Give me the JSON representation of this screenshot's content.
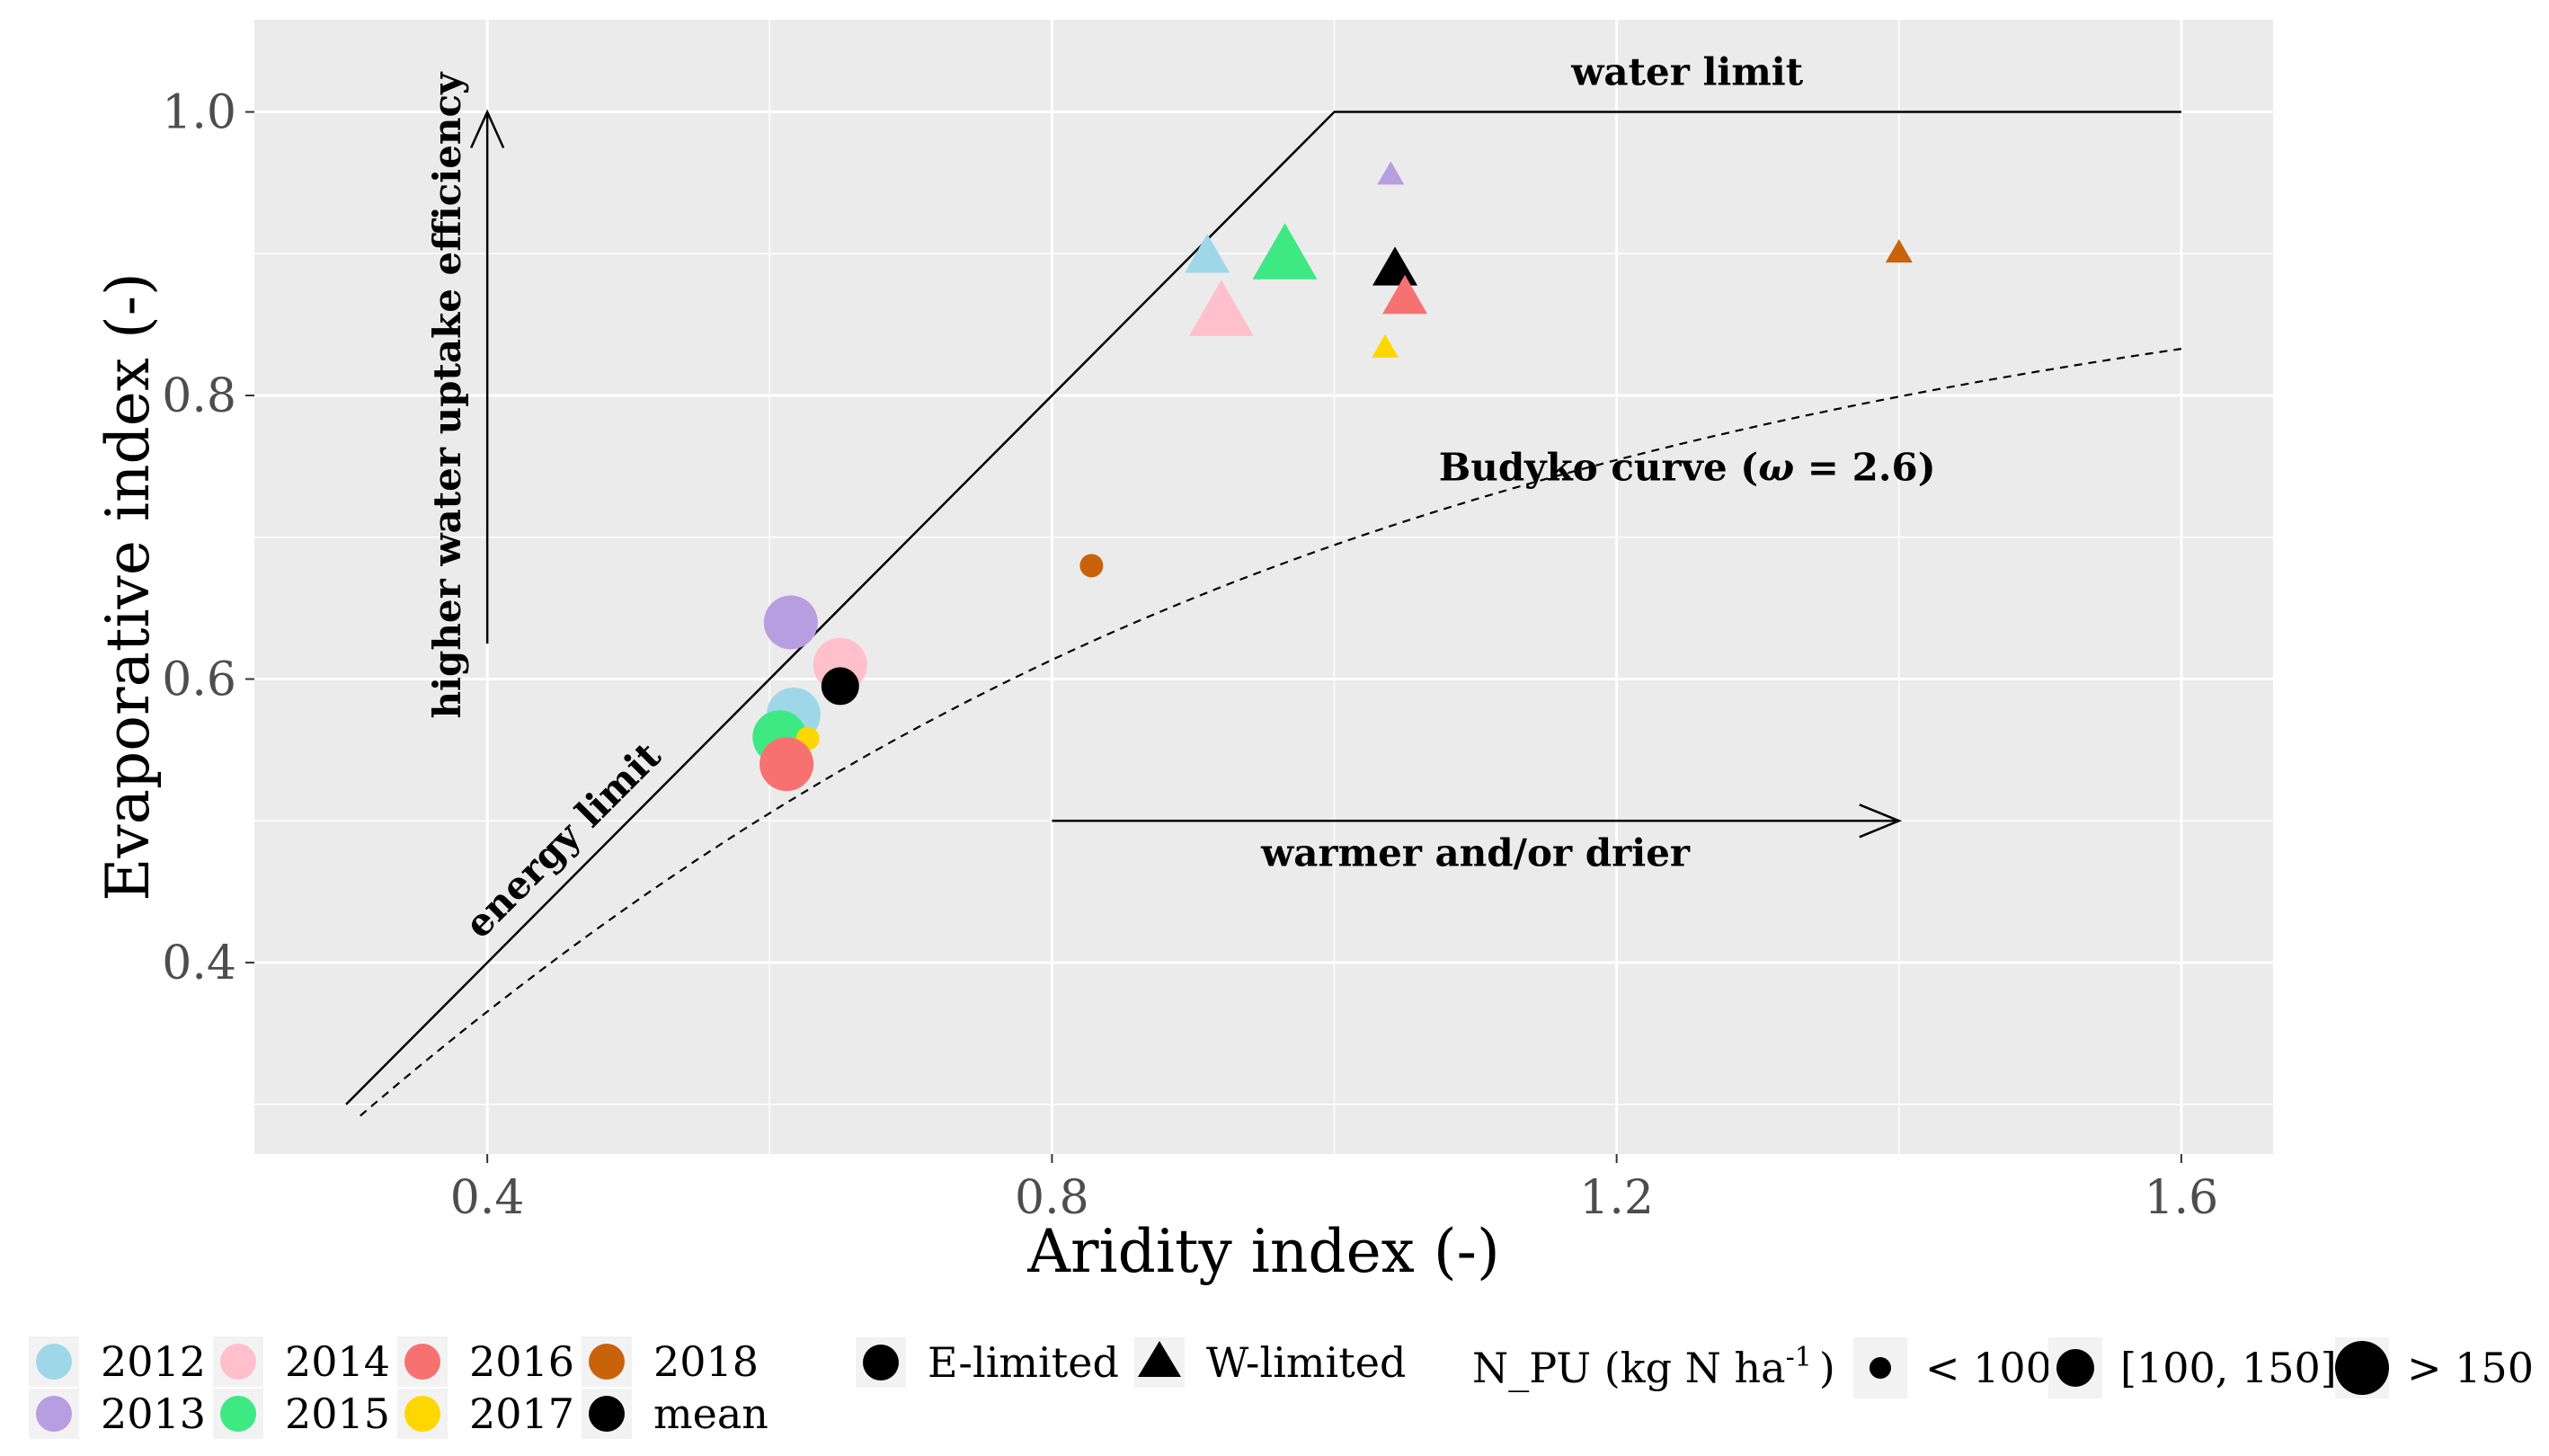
{
  "chart_data": {
    "type": "scatter",
    "xlabel": "Aridity index (-)",
    "ylabel": "Evaporative index (-)",
    "xlim": [
      0.235,
      1.665
    ],
    "ylim": [
      0.265,
      1.065
    ],
    "xticks": [
      0.4,
      0.8,
      1.2,
      1.6
    ],
    "yticks": [
      0.4,
      0.6,
      0.8,
      1.0
    ],
    "xtick_labels": [
      "0.4",
      "0.8",
      "1.2",
      "1.6"
    ],
    "ytick_labels": [
      "0.4",
      "0.6",
      "0.8",
      "1.0"
    ],
    "grid": true,
    "energy_limit": [
      [
        0.3,
        0.3
      ],
      [
        1.0,
        1.0
      ]
    ],
    "water_limit": [
      [
        1.0,
        1.0
      ],
      [
        1.6,
        1.0
      ]
    ],
    "budyko_omega": 2.6,
    "budyko_x_range": [
      0.31,
      1.6
    ],
    "annotations": {
      "water_limit": "water limit",
      "energy_limit": "energy limit",
      "budyko_prefix": "Budyko curve (",
      "budyko_omega_symbol": "ω",
      "budyko_suffix": " = 2.6)",
      "warmer": "warmer and/or drier",
      "efficiency": "higher water uptake efficiency"
    },
    "year_colors": {
      "2012": "#9ed8e8",
      "2013": "#b79ee0",
      "2014": "#ffc0cb",
      "2015": "#3ee883",
      "2016": "#f87171",
      "2017": "#ffd700",
      "2018": "#c8630c",
      "mean": "#000000"
    },
    "points": [
      {
        "year": "2013",
        "x": 0.615,
        "y": 0.64,
        "shape": "circle",
        "size": "large"
      },
      {
        "year": "2014",
        "x": 0.65,
        "y": 0.61,
        "shape": "circle",
        "size": "large"
      },
      {
        "year": "2012",
        "x": 0.617,
        "y": 0.575,
        "shape": "circle",
        "size": "large"
      },
      {
        "year": "2015",
        "x": 0.607,
        "y": 0.559,
        "shape": "circle",
        "size": "large"
      },
      {
        "year": "2017",
        "x": 0.627,
        "y": 0.558,
        "shape": "circle",
        "size": "small"
      },
      {
        "year": "2016",
        "x": 0.612,
        "y": 0.54,
        "shape": "circle",
        "size": "large"
      },
      {
        "year": "mean",
        "x": 0.65,
        "y": 0.595,
        "shape": "circle",
        "size": "medium"
      },
      {
        "year": "2018",
        "x": 0.828,
        "y": 0.68,
        "shape": "circle",
        "size": "small"
      },
      {
        "year": "2012",
        "x": 0.91,
        "y": 0.897,
        "shape": "triangle",
        "size": "medium"
      },
      {
        "year": "2014",
        "x": 0.92,
        "y": 0.857,
        "shape": "triangle",
        "size": "large"
      },
      {
        "year": "2015",
        "x": 0.965,
        "y": 0.897,
        "shape": "triangle",
        "size": "large"
      },
      {
        "year": "2013",
        "x": 1.04,
        "y": 0.955,
        "shape": "triangle",
        "size": "small"
      },
      {
        "year": "mean",
        "x": 1.043,
        "y": 0.888,
        "shape": "triangle",
        "size": "medium"
      },
      {
        "year": "2016",
        "x": 1.05,
        "y": 0.868,
        "shape": "triangle",
        "size": "medium"
      },
      {
        "year": "2017",
        "x": 1.036,
        "y": 0.833,
        "shape": "triangle",
        "size": "small"
      },
      {
        "year": "2018",
        "x": 1.4,
        "y": 0.9,
        "shape": "triangle",
        "size": "small"
      }
    ],
    "legend": {
      "years": [
        {
          "key": "2012",
          "label": "2012"
        },
        {
          "key": "2013",
          "label": "2013"
        },
        {
          "key": "2014",
          "label": "2014"
        },
        {
          "key": "2015",
          "label": "2015"
        },
        {
          "key": "2016",
          "label": "2016"
        },
        {
          "key": "2017",
          "label": "2017"
        },
        {
          "key": "2018",
          "label": "2018"
        },
        {
          "key": "mean",
          "label": "mean"
        }
      ],
      "shapes": [
        {
          "shape": "circle",
          "label": "E-limited"
        },
        {
          "shape": "triangle",
          "label": "W-limited"
        }
      ],
      "size_title": "N_PU (kg N ha",
      "size_title_sup": "-1",
      "size_title_end": ")",
      "sizes": [
        {
          "size": "small",
          "label": "< 100"
        },
        {
          "size": "medium",
          "label": "[100, 150]"
        },
        {
          "size": "large",
          "label": "> 150"
        }
      ]
    }
  }
}
